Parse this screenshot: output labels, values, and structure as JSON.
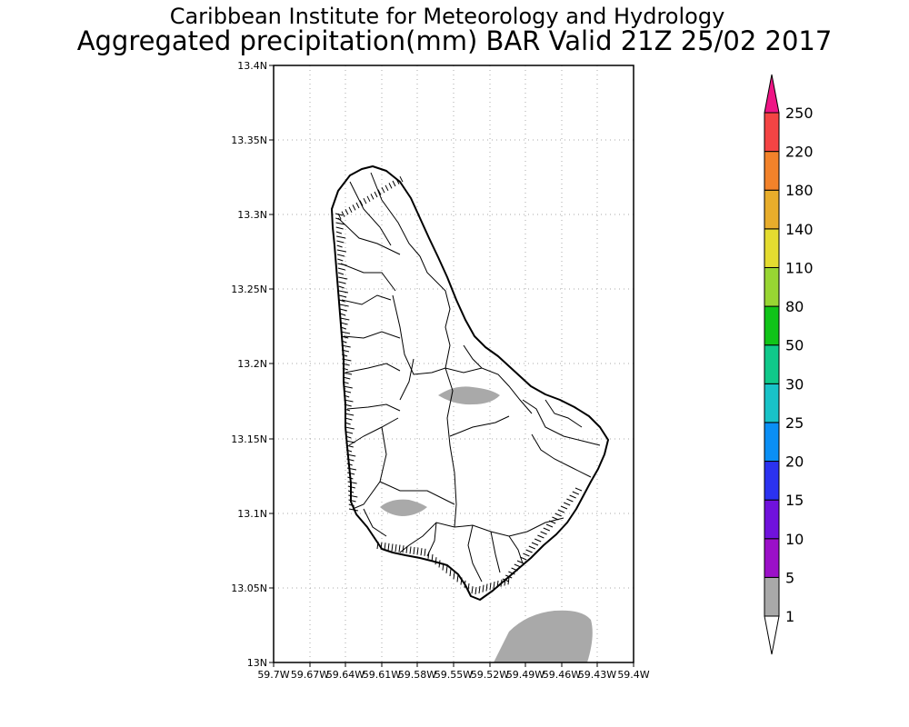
{
  "header": {
    "institution": "Caribbean Institute for Meteorology and Hydrology",
    "product": "Aggregated precipitation(mm) BAR Valid 21Z 25/02 2017"
  },
  "map": {
    "lat_range": [
      13.0,
      13.4
    ],
    "lon_range": [
      -59.7,
      -59.4
    ],
    "lat_ticks": [
      "13N",
      "13.05N",
      "13.1N",
      "13.15N",
      "13.2N",
      "13.25N",
      "13.3N",
      "13.35N",
      "13.4N"
    ],
    "lon_ticks": [
      "59.7W",
      "59.67W",
      "59.64W",
      "59.61W",
      "59.58W",
      "59.55W",
      "59.52W",
      "59.49W",
      "59.46W",
      "59.43W",
      "59.4W"
    ],
    "grid": "dotted"
  },
  "colorbar": {
    "levels": [
      "1",
      "5",
      "10",
      "15",
      "20",
      "25",
      "30",
      "50",
      "80",
      "110",
      "140",
      "180",
      "220",
      "250"
    ],
    "colors": [
      "#a9a9a9",
      "#9b10c8",
      "#7012dc",
      "#2b32f0",
      "#0a8ff5",
      "#18c3c8",
      "#10c98a",
      "#10c418",
      "#98d633",
      "#e4dc30",
      "#e8ad2b",
      "#f2822a",
      "#f44444",
      "#ee1585"
    ],
    "below_color": "#ffffff",
    "above_color": "#ee1585"
  },
  "precip_regions": [
    {
      "name": "central",
      "category": "1-5",
      "color": "#a9a9a9"
    },
    {
      "name": "southwest",
      "category": "1-5",
      "color": "#a9a9a9"
    },
    {
      "name": "offshore-south",
      "category": "1-5",
      "color": "#a9a9a9"
    }
  ]
}
